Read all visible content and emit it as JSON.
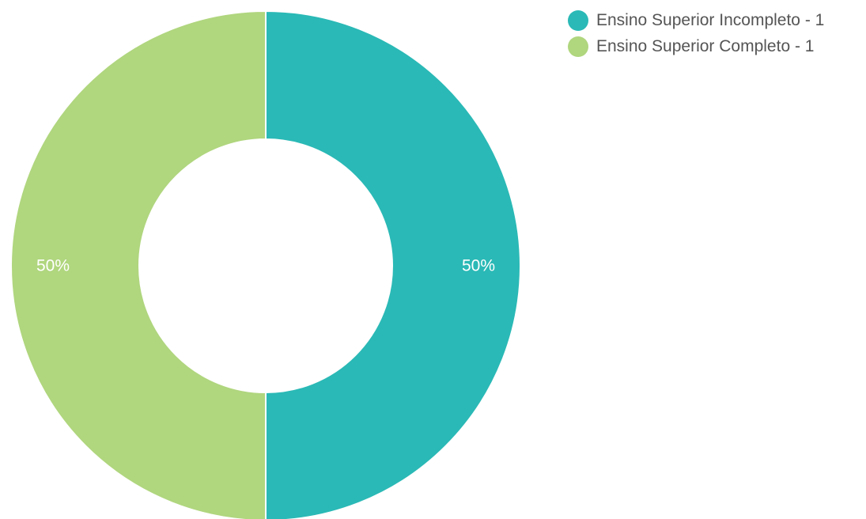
{
  "chart_data": {
    "type": "pie",
    "variant": "donut",
    "slices": [
      {
        "label": "Ensino Superior Incompleto",
        "value": 1,
        "percent_label": "50%",
        "color": "#2ab9b6"
      },
      {
        "label": "Ensino Superior Completo",
        "value": 1,
        "percent_label": "50%",
        "color": "#b0d67e"
      }
    ],
    "legend_placement": "top-right"
  },
  "legend": {
    "items": [
      {
        "text": "Ensino Superior Incompleto - 1"
      },
      {
        "text": "Ensino Superior Completo - 1"
      }
    ]
  }
}
